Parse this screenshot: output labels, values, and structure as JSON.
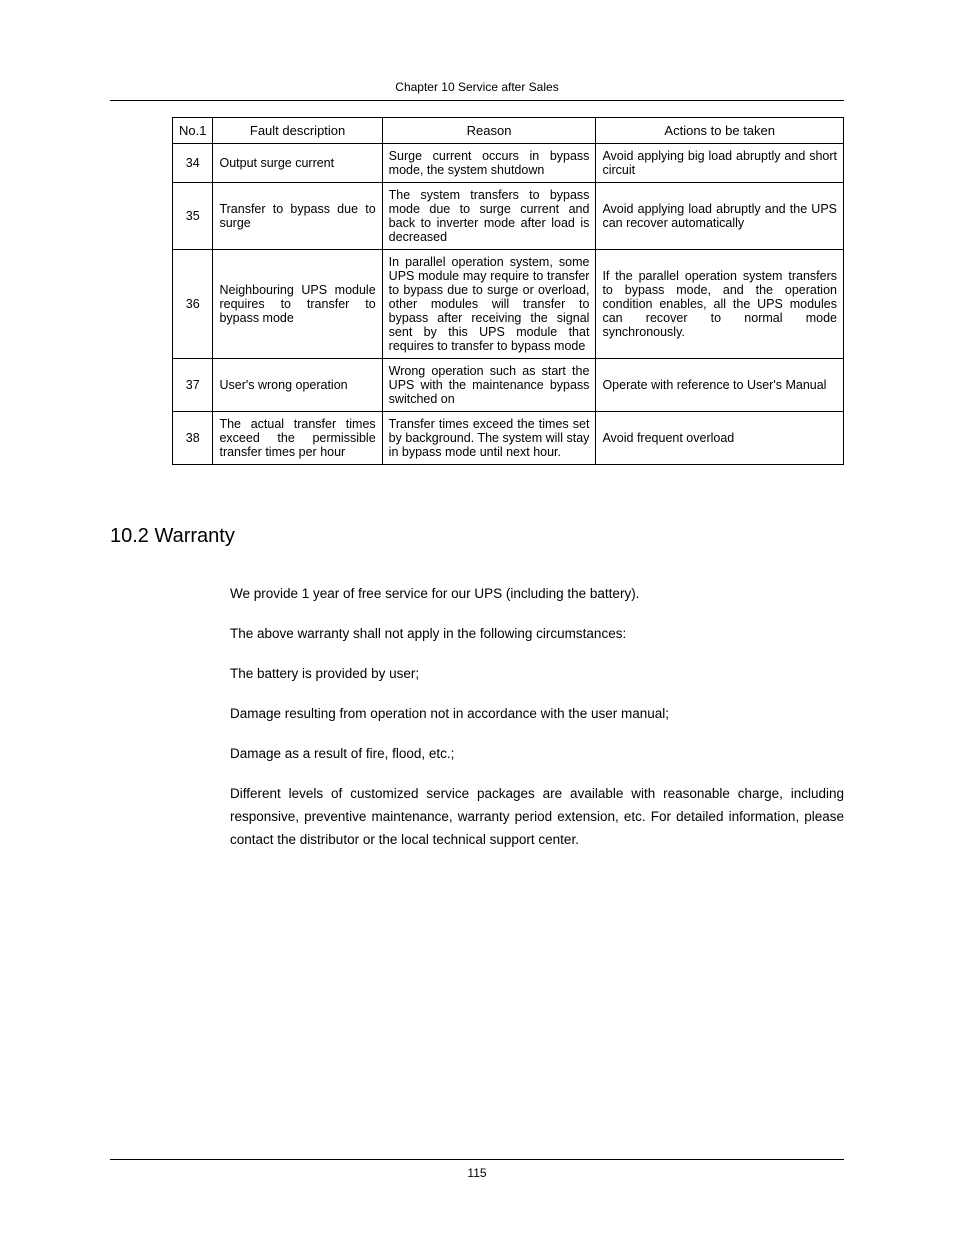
{
  "header": {
    "chapter_title": "Chapter 10  Service after Sales"
  },
  "table": {
    "columns": {
      "no": "No.1",
      "fault": "Fault description",
      "reason": "Reason",
      "action": "Actions to be taken"
    },
    "rows": [
      {
        "no": "34",
        "fault": "Output surge current",
        "reason": "Surge current occurs in bypass mode, the system shutdown",
        "action": "Avoid applying big load abruptly and short circuit"
      },
      {
        "no": "35",
        "fault": "Transfer to bypass due to surge",
        "reason": "The system transfers to bypass mode due to surge current and back to inverter mode after load is decreased",
        "action": "Avoid applying load abruptly and the UPS can recover automatically"
      },
      {
        "no": "36",
        "fault": "Neighbouring UPS module requires to transfer to bypass mode",
        "reason": "In parallel operation system, some UPS module may require to transfer to bypass due to surge or overload, other modules will transfer to bypass after receiving the signal sent by this UPS module that requires to transfer to bypass mode",
        "action": "If the parallel operation system transfers to bypass mode, and the operation condition enables, all the UPS modules can recover to normal mode synchronously."
      },
      {
        "no": "37",
        "fault": "User's wrong operation",
        "reason": "Wrong operation such as start the UPS with the maintenance bypass switched on",
        "action": "Operate with reference to User's Manual"
      },
      {
        "no": "38",
        "fault": "The actual transfer times exceed the permissible transfer  times per hour",
        "reason": "Transfer times exceed the times set by background. The system will stay in bypass mode until next hour.",
        "action": "Avoid frequent overload"
      }
    ]
  },
  "section": {
    "heading": "10.2  Warranty",
    "paragraphs": [
      "We provide 1 year of free service for our UPS (including the battery).",
      "The above warranty shall not apply in the following circumstances:",
      "The battery is provided by user;",
      "Damage resulting from operation not in accordance with the user manual;",
      "Damage as a result of fire, flood, etc.;",
      "Different levels of customized service packages are available with reasonable charge, including responsive, preventive maintenance, warranty period extension, etc. For detailed information, please contact the distributor or the local technical support center."
    ]
  },
  "footer": {
    "page_number": "115"
  }
}
